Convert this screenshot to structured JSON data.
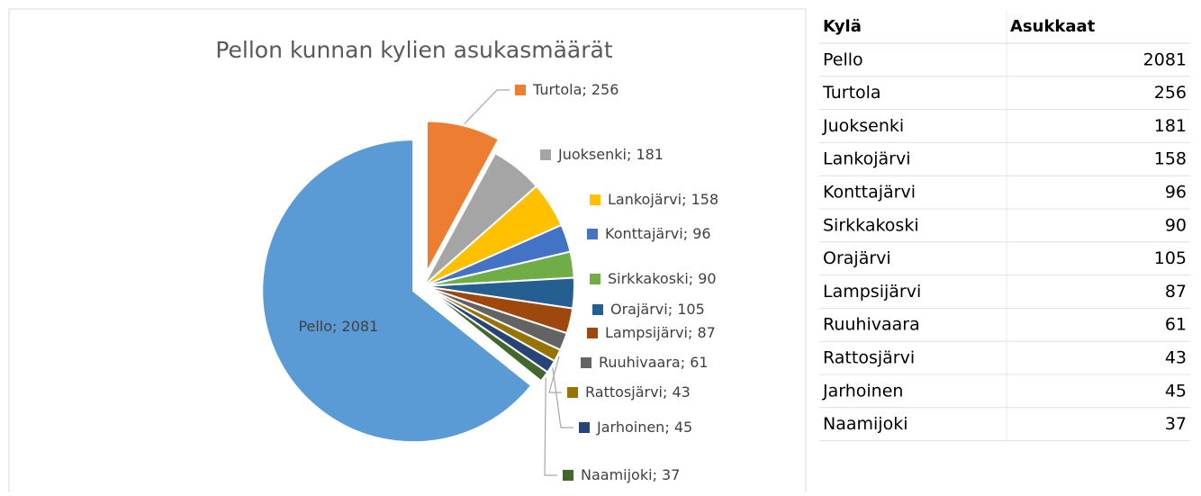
{
  "chart_data": {
    "type": "pie",
    "title": "Pellon kunnan kylien asukasmäärät",
    "label_separator": "; ",
    "categories": [
      "Pello",
      "Turtola",
      "Juoksenki",
      "Lankojärvi",
      "Konttajärvi",
      "Sirkkakoski",
      "Orajärvi",
      "Lampsijärvi",
      "Ruuhivaara",
      "Rattosjärvi",
      "Jarhoinen",
      "Naamijoki"
    ],
    "values": [
      2081,
      256,
      181,
      158,
      96,
      90,
      105,
      87,
      61,
      43,
      45,
      37
    ],
    "colors": [
      "#5b9bd5",
      "#ed7d31",
      "#a5a5a5",
      "#ffc000",
      "#4472c4",
      "#70ad47",
      "#255e91",
      "#9e480e",
      "#636363",
      "#997300",
      "#264478",
      "#43682b"
    ]
  },
  "table": {
    "header": [
      "Kylä",
      "Asukkaat"
    ],
    "rows": [
      [
        "Pello",
        "2081"
      ],
      [
        "Turtola",
        "256"
      ],
      [
        "Juoksenki",
        "181"
      ],
      [
        "Lankojärvi",
        "158"
      ],
      [
        "Konttajärvi",
        "96"
      ],
      [
        "Sirkkakoski",
        "90"
      ],
      [
        "Orajärvi",
        "105"
      ],
      [
        "Lampsijärvi",
        "87"
      ],
      [
        "Ruuhivaara",
        "61"
      ],
      [
        "Rattosjärvi",
        "43"
      ],
      [
        "Jarhoinen",
        "45"
      ],
      [
        "Naamijoki",
        "37"
      ]
    ]
  }
}
